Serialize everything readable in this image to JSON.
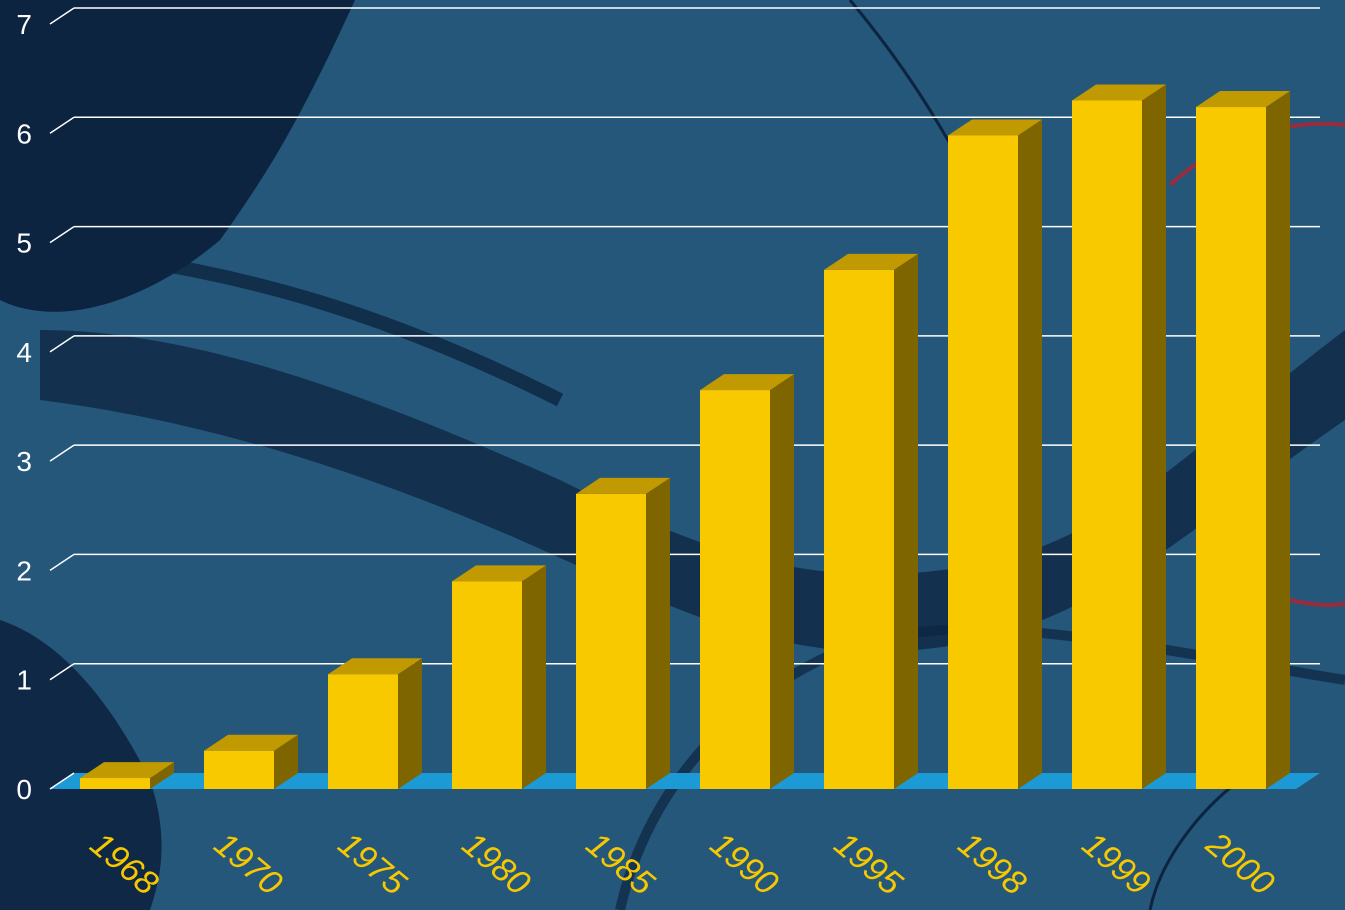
{
  "chart_data": {
    "type": "bar",
    "title": "",
    "xlabel": "",
    "ylabel": "",
    "categories": [
      "1968",
      "1970",
      "1975",
      "1980",
      "1985",
      "1990",
      "1995",
      "1998",
      "1999",
      "2000"
    ],
    "values": [
      0.1,
      0.35,
      1.05,
      1.9,
      2.7,
      3.65,
      4.75,
      5.98,
      6.3,
      6.24
    ],
    "ylim": [
      0,
      7
    ],
    "yticks": [
      "0",
      "1",
      "2",
      "3",
      "4",
      "5",
      "6",
      "7"
    ],
    "grid": true,
    "legend": "none",
    "three_d": true,
    "colors": {
      "bar_front": "#f9c900",
      "bar_top": "#c09a00",
      "bar_side": "#7e6500",
      "floor": "#1c9ad6",
      "gridline": "#ffffff",
      "category_label": "#f6c800",
      "tick_label": "#ffffff",
      "background_water": "#24577a",
      "background_land": "#0d2440"
    }
  }
}
